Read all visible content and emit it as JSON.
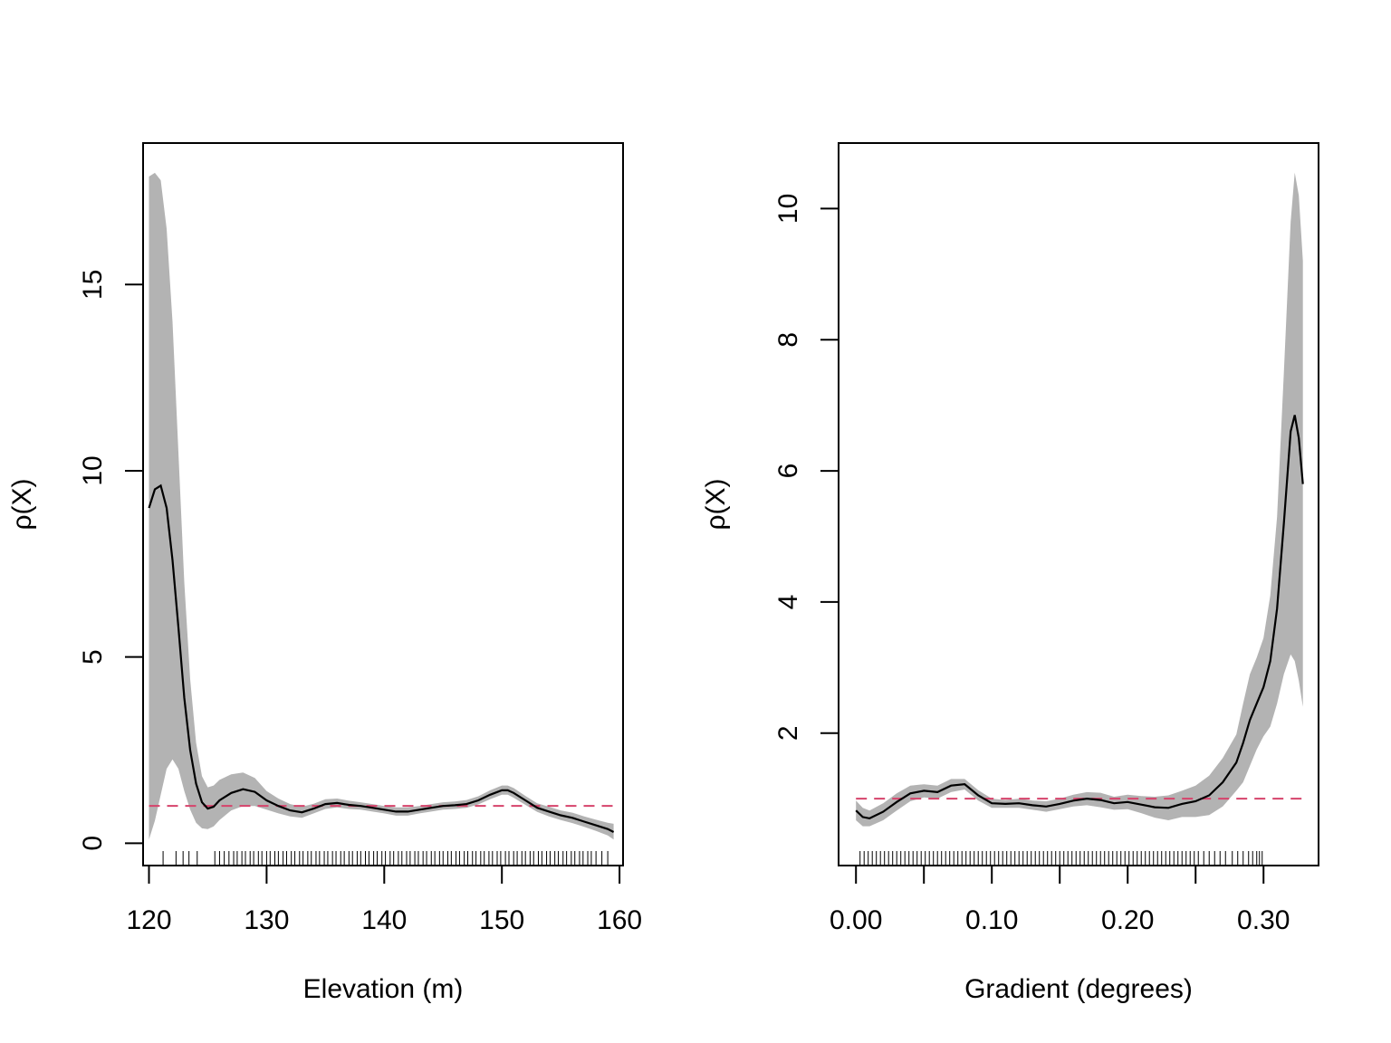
{
  "colors": {
    "band": "#b3b3b3",
    "estimate": "#000000",
    "reference": "#d6436b",
    "rug": "#000000",
    "frame": "#000000"
  },
  "chart_data": [
    {
      "type": "line",
      "xlabel": "Elevation (m)",
      "ylabel": "ρ(X)",
      "xlim": [
        119.5,
        160.3
      ],
      "ylim": [
        -0.6,
        18.8
      ],
      "xticks": [
        120,
        130,
        140,
        150,
        160
      ],
      "xtick_labels": [
        "120",
        "130",
        "140",
        "150",
        "160"
      ],
      "yticks": [
        0,
        5,
        10,
        15
      ],
      "ytick_labels": [
        "0",
        "5",
        "10",
        "15"
      ],
      "reference_line": 1.0,
      "series": [
        {
          "role": "estimate",
          "x": [
            120,
            120.5,
            121,
            121.5,
            122,
            122.5,
            123,
            123.5,
            124,
            124.5,
            125,
            125.5,
            126,
            127,
            128,
            129,
            130,
            131,
            132,
            133,
            134,
            135,
            136,
            137,
            138,
            139,
            140,
            141,
            142,
            143,
            144,
            145,
            146,
            147,
            148,
            149,
            150,
            150.5,
            151,
            152,
            153,
            154,
            155,
            156,
            157,
            158,
            159,
            159.5
          ],
          "y": [
            9.0,
            9.5,
            9.6,
            9.0,
            7.6,
            5.8,
            3.9,
            2.5,
            1.6,
            1.1,
            0.93,
            0.98,
            1.15,
            1.35,
            1.45,
            1.38,
            1.15,
            1.0,
            0.88,
            0.83,
            0.93,
            1.05,
            1.08,
            1.03,
            1.0,
            0.95,
            0.9,
            0.85,
            0.85,
            0.9,
            0.95,
            1.0,
            1.02,
            1.05,
            1.15,
            1.3,
            1.42,
            1.42,
            1.35,
            1.15,
            0.95,
            0.85,
            0.75,
            0.68,
            0.58,
            0.48,
            0.38,
            0.3
          ]
        },
        {
          "role": "upper",
          "x": [
            120,
            120.5,
            121,
            121.5,
            122,
            122.5,
            123,
            123.5,
            124,
            124.5,
            125,
            125.5,
            126,
            127,
            128,
            129,
            130,
            131,
            132,
            133,
            134,
            135,
            136,
            137,
            138,
            139,
            140,
            141,
            142,
            143,
            144,
            145,
            146,
            147,
            148,
            149,
            150,
            150.5,
            151,
            152,
            153,
            154,
            155,
            156,
            157,
            158,
            159,
            159.5
          ],
          "y": [
            17.9,
            18.0,
            17.8,
            16.5,
            14.0,
            10.5,
            7.0,
            4.4,
            2.7,
            1.8,
            1.5,
            1.55,
            1.7,
            1.85,
            1.9,
            1.75,
            1.4,
            1.2,
            1.05,
            0.98,
            1.06,
            1.18,
            1.2,
            1.14,
            1.1,
            1.05,
            1.0,
            0.96,
            0.96,
            1.0,
            1.05,
            1.1,
            1.12,
            1.16,
            1.26,
            1.42,
            1.55,
            1.55,
            1.48,
            1.27,
            1.07,
            0.98,
            0.88,
            0.82,
            0.72,
            0.63,
            0.55,
            0.52
          ]
        },
        {
          "role": "lower",
          "x": [
            120,
            120.5,
            121,
            121.5,
            122,
            122.5,
            123,
            123.5,
            124,
            124.5,
            125,
            125.5,
            126,
            127,
            128,
            129,
            130,
            131,
            132,
            133,
            134,
            135,
            136,
            137,
            138,
            139,
            140,
            141,
            142,
            143,
            144,
            145,
            146,
            147,
            148,
            149,
            150,
            150.5,
            151,
            152,
            153,
            154,
            155,
            156,
            157,
            158,
            159,
            159.5
          ],
          "y": [
            0.1,
            0.6,
            1.3,
            2.0,
            2.25,
            2.0,
            1.4,
            0.9,
            0.55,
            0.4,
            0.38,
            0.45,
            0.62,
            0.88,
            1.0,
            1.0,
            0.9,
            0.8,
            0.72,
            0.68,
            0.8,
            0.92,
            0.96,
            0.92,
            0.9,
            0.85,
            0.8,
            0.74,
            0.74,
            0.8,
            0.85,
            0.9,
            0.92,
            0.95,
            1.04,
            1.18,
            1.3,
            1.3,
            1.22,
            1.03,
            0.84,
            0.72,
            0.62,
            0.54,
            0.44,
            0.33,
            0.21,
            0.1
          ]
        }
      ],
      "rug": [
        121.2,
        122.3,
        122.9,
        123.4,
        124.1,
        125.6,
        126.0,
        126.4,
        126.8,
        127.2,
        127.5,
        127.9,
        128.2,
        128.6,
        128.9,
        129.3,
        129.6,
        130.0,
        130.3,
        130.7,
        131.0,
        131.4,
        131.7,
        132.1,
        132.4,
        132.8,
        133.1,
        133.5,
        133.8,
        134.2,
        134.5,
        134.9,
        135.2,
        135.6,
        135.9,
        136.3,
        136.6,
        137.0,
        137.3,
        137.7,
        138.0,
        138.4,
        138.7,
        139.1,
        139.4,
        139.8,
        140.1,
        140.5,
        140.8,
        141.2,
        141.5,
        141.9,
        142.2,
        142.6,
        142.9,
        143.3,
        143.6,
        144.0,
        144.3,
        144.7,
        145.0,
        145.4,
        145.7,
        146.1,
        146.4,
        146.8,
        147.1,
        147.5,
        147.8,
        148.2,
        148.5,
        148.9,
        149.2,
        149.6,
        149.9,
        150.3,
        150.6,
        151.0,
        151.3,
        151.7,
        152.0,
        152.4,
        152.7,
        153.1,
        153.4,
        153.8,
        154.1,
        154.5,
        154.8,
        155.2,
        155.5,
        155.9,
        156.2,
        156.6,
        156.9,
        157.3,
        157.6,
        158.0,
        158.5,
        159.0
      ]
    },
    {
      "type": "line",
      "xlabel": "Gradient (degrees)",
      "ylabel": "ρ(X)",
      "xlim": [
        -0.0128,
        0.3405
      ],
      "ylim": [
        -0.02,
        11.0
      ],
      "xticks": [
        0.0,
        0.05,
        0.1,
        0.15,
        0.2,
        0.25,
        0.3
      ],
      "xtick_labels": [
        "0.00",
        "",
        "0.10",
        "",
        "0.20",
        "",
        "0.30"
      ],
      "yticks": [
        2,
        4,
        6,
        8,
        10
      ],
      "ytick_labels": [
        "2",
        "4",
        "6",
        "8",
        "10"
      ],
      "reference_line": 1.0,
      "series": [
        {
          "role": "estimate",
          "x": [
            0.0,
            0.005,
            0.01,
            0.02,
            0.03,
            0.04,
            0.05,
            0.06,
            0.07,
            0.08,
            0.09,
            0.1,
            0.11,
            0.12,
            0.13,
            0.14,
            0.15,
            0.16,
            0.17,
            0.18,
            0.19,
            0.2,
            0.21,
            0.22,
            0.23,
            0.24,
            0.25,
            0.26,
            0.27,
            0.28,
            0.285,
            0.29,
            0.295,
            0.3,
            0.305,
            0.31,
            0.315,
            0.32,
            0.323,
            0.326,
            0.329
          ],
          "y": [
            0.82,
            0.72,
            0.7,
            0.8,
            0.95,
            1.08,
            1.12,
            1.1,
            1.2,
            1.22,
            1.05,
            0.93,
            0.92,
            0.93,
            0.9,
            0.88,
            0.92,
            0.97,
            1.0,
            0.98,
            0.93,
            0.95,
            0.91,
            0.87,
            0.86,
            0.92,
            0.96,
            1.05,
            1.25,
            1.55,
            1.85,
            2.2,
            2.45,
            2.7,
            3.1,
            3.9,
            5.2,
            6.6,
            6.85,
            6.5,
            5.8
          ]
        },
        {
          "role": "upper",
          "x": [
            0.0,
            0.005,
            0.01,
            0.02,
            0.03,
            0.04,
            0.05,
            0.06,
            0.07,
            0.08,
            0.09,
            0.1,
            0.11,
            0.12,
            0.13,
            0.14,
            0.15,
            0.16,
            0.17,
            0.18,
            0.19,
            0.2,
            0.21,
            0.22,
            0.23,
            0.24,
            0.25,
            0.26,
            0.27,
            0.28,
            0.285,
            0.29,
            0.295,
            0.3,
            0.305,
            0.31,
            0.315,
            0.32,
            0.323,
            0.326,
            0.329
          ],
          "y": [
            0.97,
            0.86,
            0.82,
            0.93,
            1.08,
            1.2,
            1.22,
            1.2,
            1.3,
            1.3,
            1.13,
            1.0,
            0.98,
            1.0,
            0.97,
            0.96,
            1.0,
            1.06,
            1.1,
            1.09,
            1.03,
            1.06,
            1.04,
            1.03,
            1.05,
            1.12,
            1.2,
            1.35,
            1.62,
            1.98,
            2.45,
            2.9,
            3.15,
            3.45,
            4.1,
            5.3,
            7.5,
            9.8,
            10.55,
            10.2,
            9.2
          ]
        },
        {
          "role": "lower",
          "x": [
            0.0,
            0.005,
            0.01,
            0.02,
            0.03,
            0.04,
            0.05,
            0.06,
            0.07,
            0.08,
            0.09,
            0.1,
            0.11,
            0.12,
            0.13,
            0.14,
            0.15,
            0.16,
            0.17,
            0.18,
            0.19,
            0.2,
            0.21,
            0.22,
            0.23,
            0.24,
            0.25,
            0.26,
            0.27,
            0.28,
            0.285,
            0.29,
            0.295,
            0.3,
            0.305,
            0.31,
            0.315,
            0.32,
            0.323,
            0.326,
            0.329
          ],
          "y": [
            0.67,
            0.58,
            0.58,
            0.67,
            0.82,
            0.96,
            1.02,
            1.0,
            1.1,
            1.14,
            0.97,
            0.86,
            0.86,
            0.86,
            0.83,
            0.8,
            0.84,
            0.88,
            0.9,
            0.87,
            0.83,
            0.84,
            0.78,
            0.71,
            0.67,
            0.72,
            0.72,
            0.75,
            0.88,
            1.12,
            1.25,
            1.5,
            1.75,
            1.95,
            2.1,
            2.45,
            2.9,
            3.2,
            3.1,
            2.8,
            2.4
          ]
        }
      ],
      "rug": [
        0.003,
        0.006,
        0.009,
        0.012,
        0.015,
        0.018,
        0.021,
        0.024,
        0.027,
        0.03,
        0.033,
        0.036,
        0.039,
        0.042,
        0.045,
        0.048,
        0.051,
        0.054,
        0.057,
        0.06,
        0.063,
        0.066,
        0.069,
        0.072,
        0.075,
        0.078,
        0.081,
        0.084,
        0.087,
        0.09,
        0.093,
        0.096,
        0.099,
        0.102,
        0.105,
        0.108,
        0.111,
        0.114,
        0.117,
        0.12,
        0.123,
        0.126,
        0.129,
        0.132,
        0.135,
        0.138,
        0.141,
        0.144,
        0.147,
        0.15,
        0.153,
        0.156,
        0.159,
        0.162,
        0.165,
        0.168,
        0.171,
        0.174,
        0.177,
        0.18,
        0.183,
        0.186,
        0.189,
        0.192,
        0.195,
        0.198,
        0.201,
        0.204,
        0.207,
        0.21,
        0.213,
        0.216,
        0.219,
        0.222,
        0.225,
        0.228,
        0.231,
        0.234,
        0.237,
        0.24,
        0.243,
        0.246,
        0.249,
        0.252,
        0.256,
        0.26,
        0.264,
        0.268,
        0.272,
        0.277,
        0.281,
        0.285,
        0.289,
        0.292,
        0.295,
        0.297,
        0.299
      ]
    }
  ]
}
